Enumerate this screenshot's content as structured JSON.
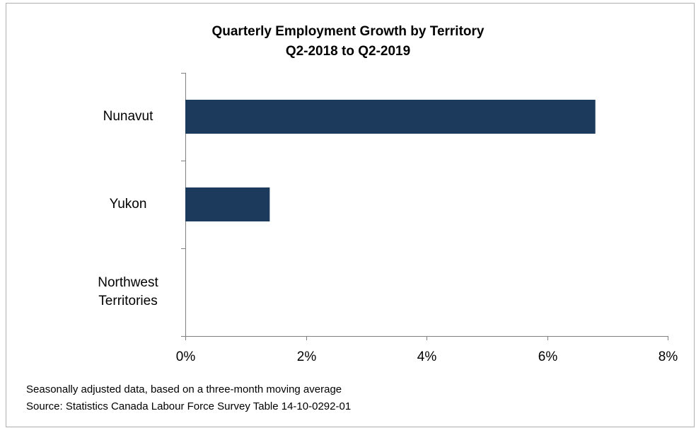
{
  "chart_data": {
    "type": "bar",
    "orientation": "horizontal",
    "title": "Quarterly Employment Growth by Territory",
    "subtitle": "Q2-2018 to Q2-2019",
    "categories": [
      "Nunavut",
      "Yukon",
      "Northwest Territories"
    ],
    "values": [
      6.8,
      1.4,
      0
    ],
    "color": "#1b3a5c",
    "xlim": [
      0,
      8
    ],
    "xticks": [
      {
        "value": 0,
        "label": "0%"
      },
      {
        "value": 2,
        "label": "2%"
      },
      {
        "value": 4,
        "label": "4%"
      },
      {
        "value": 6,
        "label": "6%"
      },
      {
        "value": 8,
        "label": "8%"
      }
    ],
    "grid": false,
    "annotations": [
      "Seasonally adjusted data, based on a three-month moving average",
      "Source: Statistics Canada Labour Force Survey Table 14-10-0292-01"
    ]
  }
}
